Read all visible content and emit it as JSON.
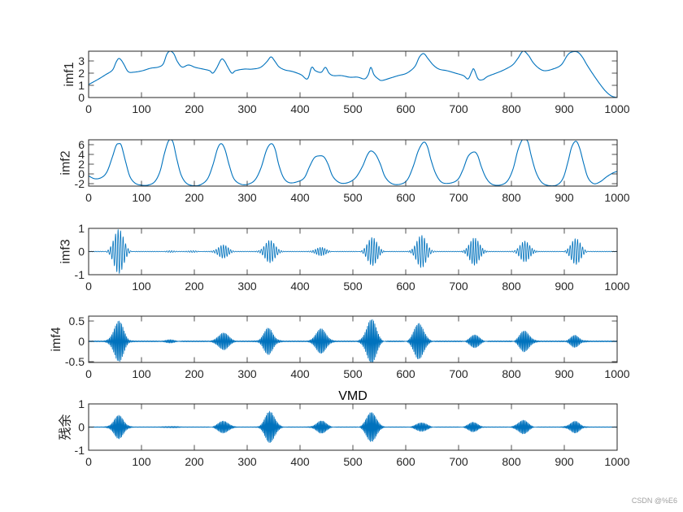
{
  "figure": {
    "background": "#ffffff",
    "axes_color": "#262626"
  },
  "watermark": "CSDN @%E6",
  "chart_data": [
    {
      "type": "line",
      "ylabel": "imf1",
      "xlim": [
        0,
        1000
      ],
      "ylim": [
        0,
        3.8
      ],
      "xticks": [
        "0",
        "100",
        "200",
        "300",
        "400",
        "500",
        "600",
        "700",
        "800",
        "900",
        "1000"
      ],
      "yticks": [
        "0",
        "1",
        "2",
        "3"
      ],
      "grid": false,
      "color": "#0072BD",
      "points": [
        [
          0,
          1.07
        ],
        [
          17,
          1.47
        ],
        [
          32,
          1.87
        ],
        [
          45,
          2.25
        ],
        [
          52,
          2.9
        ],
        [
          57,
          3.2
        ],
        [
          62,
          3.05
        ],
        [
          67,
          2.7
        ],
        [
          75,
          2.12
        ],
        [
          86,
          2.08
        ],
        [
          102,
          2.2
        ],
        [
          117,
          2.4
        ],
        [
          132,
          2.5
        ],
        [
          141,
          2.75
        ],
        [
          148,
          3.55
        ],
        [
          154,
          3.8
        ],
        [
          161,
          3.6
        ],
        [
          168,
          2.95
        ],
        [
          177,
          2.5
        ],
        [
          189,
          2.67
        ],
        [
          202,
          2.47
        ],
        [
          217,
          2.33
        ],
        [
          229,
          2.2
        ],
        [
          235,
          2.0
        ],
        [
          242,
          2.4
        ],
        [
          251,
          3.13
        ],
        [
          257,
          3.0
        ],
        [
          263,
          2.53
        ],
        [
          271,
          2.0
        ],
        [
          278,
          2.2
        ],
        [
          294,
          2.33
        ],
        [
          309,
          2.33
        ],
        [
          325,
          2.47
        ],
        [
          337,
          2.93
        ],
        [
          345,
          3.33
        ],
        [
          352,
          3.0
        ],
        [
          360,
          2.53
        ],
        [
          371,
          2.27
        ],
        [
          386,
          2.13
        ],
        [
          402,
          1.87
        ],
        [
          414,
          1.53
        ],
        [
          422,
          2.47
        ],
        [
          429,
          2.2
        ],
        [
          440,
          2.07
        ],
        [
          448,
          2.47
        ],
        [
          455,
          2.0
        ],
        [
          463,
          1.8
        ],
        [
          478,
          1.8
        ],
        [
          494,
          1.67
        ],
        [
          509,
          1.67
        ],
        [
          522,
          1.53
        ],
        [
          529,
          1.87
        ],
        [
          534,
          2.47
        ],
        [
          540,
          1.87
        ],
        [
          548,
          1.53
        ],
        [
          555,
          1.4
        ],
        [
          571,
          1.6
        ],
        [
          586,
          1.8
        ],
        [
          602,
          2.0
        ],
        [
          617,
          2.53
        ],
        [
          626,
          3.33
        ],
        [
          634,
          3.6
        ],
        [
          642,
          3.2
        ],
        [
          652,
          2.67
        ],
        [
          663,
          2.33
        ],
        [
          678,
          2.2
        ],
        [
          694,
          2.0
        ],
        [
          709,
          1.8
        ],
        [
          718,
          1.53
        ],
        [
          725,
          2.13
        ],
        [
          729,
          2.33
        ],
        [
          737,
          1.53
        ],
        [
          746,
          1.47
        ],
        [
          755,
          1.73
        ],
        [
          771,
          2.0
        ],
        [
          786,
          2.27
        ],
        [
          802,
          2.67
        ],
        [
          812,
          3.2
        ],
        [
          822,
          3.8
        ],
        [
          832,
          3.47
        ],
        [
          841,
          2.87
        ],
        [
          852,
          2.4
        ],
        [
          863,
          2.2
        ],
        [
          878,
          2.33
        ],
        [
          894,
          2.67
        ],
        [
          906,
          3.47
        ],
        [
          914,
          3.73
        ],
        [
          925,
          3.73
        ],
        [
          934,
          3.33
        ],
        [
          943,
          2.67
        ],
        [
          955,
          1.87
        ],
        [
          968,
          1.07
        ],
        [
          978,
          0.53
        ],
        [
          989,
          0.13
        ],
        [
          1000,
          0.0
        ]
      ]
    },
    {
      "type": "line",
      "ylabel": "imf2",
      "xlim": [
        0,
        1000
      ],
      "ylim": [
        -2.5,
        7.0
      ],
      "xticks": [
        "0",
        "100",
        "200",
        "300",
        "400",
        "500",
        "600",
        "700",
        "800",
        "900",
        "1000"
      ],
      "yticks": [
        "-2",
        "0",
        "2",
        "4",
        "6"
      ],
      "grid": false,
      "color": "#0072BD",
      "points": [
        [
          0,
          -0.4
        ],
        [
          12,
          -1.0
        ],
        [
          25,
          -0.7
        ],
        [
          35,
          0.5
        ],
        [
          45,
          3.5
        ],
        [
          52,
          5.8
        ],
        [
          57,
          6.2
        ],
        [
          62,
          5.8
        ],
        [
          70,
          2.5
        ],
        [
          78,
          -0.5
        ],
        [
          88,
          -1.9
        ],
        [
          100,
          -2.3
        ],
        [
          112,
          -2.3
        ],
        [
          125,
          -1.6
        ],
        [
          135,
          0.5
        ],
        [
          143,
          4.0
        ],
        [
          150,
          6.5
        ],
        [
          155,
          7.0
        ],
        [
          160,
          6.4
        ],
        [
          167,
          3.0
        ],
        [
          175,
          -0.2
        ],
        [
          185,
          -1.9
        ],
        [
          198,
          -2.4
        ],
        [
          212,
          -2.2
        ],
        [
          225,
          -1.0
        ],
        [
          235,
          1.8
        ],
        [
          244,
          5.2
        ],
        [
          251,
          6.2
        ],
        [
          258,
          5.0
        ],
        [
          266,
          1.8
        ],
        [
          275,
          -1.0
        ],
        [
          288,
          -2.1
        ],
        [
          302,
          -2.1
        ],
        [
          315,
          -1.2
        ],
        [
          326,
          1.2
        ],
        [
          337,
          5.0
        ],
        [
          346,
          6.2
        ],
        [
          353,
          5.0
        ],
        [
          360,
          1.8
        ],
        [
          369,
          -0.8
        ],
        [
          380,
          -1.8
        ],
        [
          395,
          -1.6
        ],
        [
          408,
          -0.8
        ],
        [
          418,
          1.5
        ],
        [
          427,
          3.3
        ],
        [
          436,
          3.7
        ],
        [
          445,
          3.5
        ],
        [
          453,
          2.0
        ],
        [
          462,
          -0.5
        ],
        [
          475,
          -1.8
        ],
        [
          490,
          -1.8
        ],
        [
          505,
          -0.8
        ],
        [
          518,
          1.5
        ],
        [
          527,
          3.8
        ],
        [
          534,
          4.7
        ],
        [
          543,
          4.0
        ],
        [
          552,
          2.0
        ],
        [
          561,
          -0.6
        ],
        [
          574,
          -2.0
        ],
        [
          590,
          -2.1
        ],
        [
          603,
          -1.2
        ],
        [
          614,
          1.5
        ],
        [
          624,
          4.8
        ],
        [
          634,
          6.5
        ],
        [
          641,
          5.6
        ],
        [
          648,
          2.8
        ],
        [
          657,
          0.0
        ],
        [
          668,
          -1.7
        ],
        [
          683,
          -1.9
        ],
        [
          698,
          -1.2
        ],
        [
          708,
          0.8
        ],
        [
          718,
          3.6
        ],
        [
          729,
          4.5
        ],
        [
          736,
          3.8
        ],
        [
          743,
          1.5
        ],
        [
          752,
          -0.8
        ],
        [
          763,
          -2.1
        ],
        [
          778,
          -2.3
        ],
        [
          792,
          -1.5
        ],
        [
          803,
          1.0
        ],
        [
          812,
          4.8
        ],
        [
          820,
          6.9
        ],
        [
          825,
          7.0
        ],
        [
          831,
          6.6
        ],
        [
          838,
          3.5
        ],
        [
          847,
          0.2
        ],
        [
          858,
          -1.8
        ],
        [
          872,
          -2.4
        ],
        [
          887,
          -2.2
        ],
        [
          898,
          -0.8
        ],
        [
          907,
          2.5
        ],
        [
          914,
          5.5
        ],
        [
          922,
          6.7
        ],
        [
          929,
          5.3
        ],
        [
          937,
          2.0
        ],
        [
          945,
          -0.8
        ],
        [
          956,
          -2.0
        ],
        [
          968,
          -1.6
        ],
        [
          980,
          -0.6
        ],
        [
          992,
          0.2
        ],
        [
          1000,
          0.5
        ]
      ]
    },
    {
      "type": "line",
      "ylabel": "imf3",
      "xlim": [
        0,
        1000
      ],
      "ylim": [
        -1,
        1
      ],
      "xticks": [
        "0",
        "100",
        "200",
        "300",
        "400",
        "500",
        "600",
        "700",
        "800",
        "900",
        "1000"
      ],
      "yticks": [
        "-1",
        "0",
        "1"
      ],
      "grid": false,
      "color": "#0072BD",
      "envelope": [
        [
          57,
          0.95
        ],
        [
          155,
          0.05
        ],
        [
          200,
          0.03
        ],
        [
          255,
          0.3
        ],
        [
          343,
          0.5
        ],
        [
          440,
          0.18
        ],
        [
          537,
          0.6
        ],
        [
          630,
          0.7
        ],
        [
          730,
          0.58
        ],
        [
          825,
          0.45
        ],
        [
          922,
          0.55
        ]
      ]
    },
    {
      "type": "line",
      "ylabel": "imf4",
      "xlim": [
        0,
        1000
      ],
      "ylim": [
        -0.52,
        0.62
      ],
      "xticks": [
        "0",
        "100",
        "200",
        "300",
        "400",
        "500",
        "600",
        "700",
        "800",
        "900",
        "1000"
      ],
      "yticks": [
        "-0.5",
        "0",
        "0.5"
      ],
      "grid": false,
      "color": "#0072BD",
      "envelope": [
        [
          57,
          0.5
        ],
        [
          155,
          0.03
        ],
        [
          255,
          0.22
        ],
        [
          340,
          0.32
        ],
        [
          440,
          0.32
        ],
        [
          535,
          0.55
        ],
        [
          625,
          0.45
        ],
        [
          730,
          0.15
        ],
        [
          825,
          0.26
        ],
        [
          920,
          0.14
        ]
      ]
    },
    {
      "type": "line",
      "title": "VMD",
      "ylabel": "残余",
      "xlim": [
        0,
        1000
      ],
      "ylim": [
        -1,
        1
      ],
      "xticks": [
        "0",
        "100",
        "200",
        "300",
        "400",
        "500",
        "600",
        "700",
        "800",
        "900",
        "1000"
      ],
      "yticks": [
        "-1",
        "0",
        "1"
      ],
      "grid": false,
      "color": "#0072BD",
      "envelope": [
        [
          57,
          0.5
        ],
        [
          155,
          0.04
        ],
        [
          255,
          0.27
        ],
        [
          343,
          0.68
        ],
        [
          440,
          0.27
        ],
        [
          535,
          0.65
        ],
        [
          630,
          0.2
        ],
        [
          728,
          0.2
        ],
        [
          822,
          0.3
        ],
        [
          920,
          0.25
        ]
      ]
    }
  ]
}
